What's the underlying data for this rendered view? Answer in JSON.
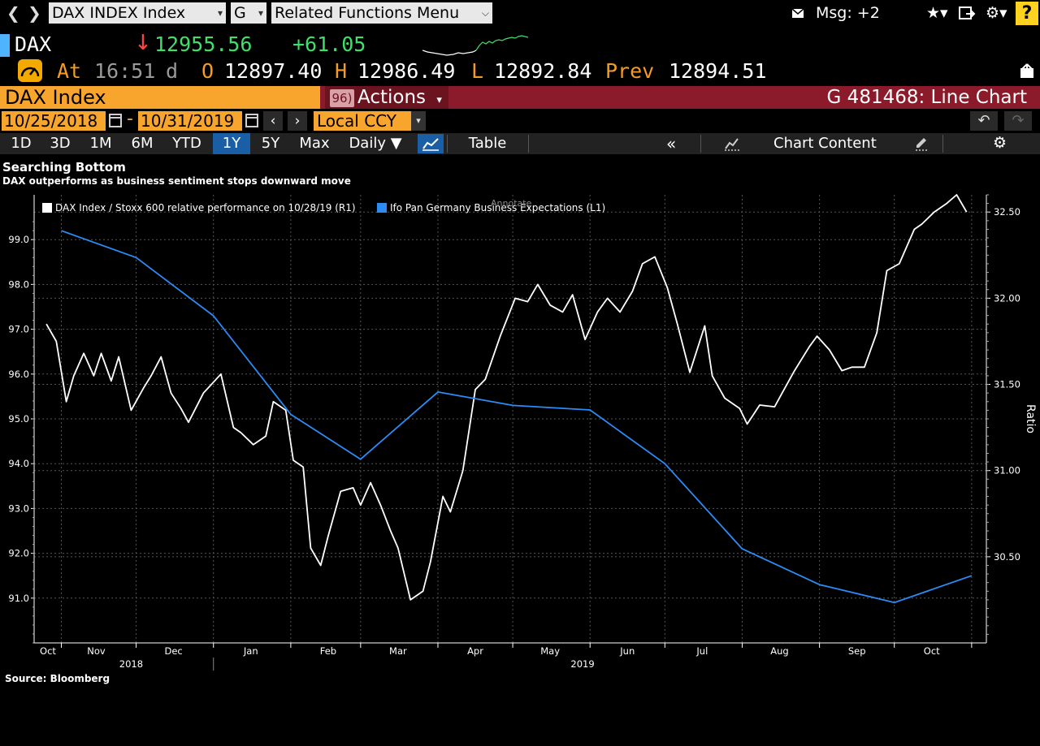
{
  "topbar": {
    "security_field": "DAX INDEX Index",
    "function_field": "G",
    "menu_field": "Related Functions  Menu",
    "msg_label": "Msg: +2",
    "help_label": "?"
  },
  "quote": {
    "ticker": "DAX",
    "last_price": "12955.56",
    "net_change": "+61.05",
    "time_prefix": "At",
    "time": "16:51",
    "time_suffix": "d",
    "open_label": "O",
    "open": "12897.40",
    "high_label": "H",
    "high": "12986.49",
    "low_label": "L",
    "low": "12892.84",
    "prev_label": "Prev",
    "prev": "12894.51"
  },
  "header": {
    "security_name": "DAX Index",
    "actions_num": "96)",
    "actions_label": "Actions",
    "chart_title": "G 481468: Line Chart"
  },
  "controls": {
    "start_date": "10/25/2018",
    "end_date": "10/31/2019",
    "date_separator": "-",
    "currency": "Local CCY",
    "periods": [
      "1D",
      "3D",
      "1M",
      "6M",
      "YTD",
      "1Y",
      "5Y",
      "Max"
    ],
    "active_period": "1Y",
    "frequency": "Daily",
    "table_label": "Table",
    "chart_content_label": "Chart Content"
  },
  "colors": {
    "accent_orange": "#f7a52d",
    "header_red": "#8b1b2a",
    "price_green": "#3ee06a",
    "active_blue": "#1a5fa6",
    "series_white": "#ffffff",
    "series_blue": "#2b8cf5"
  },
  "chart_data": {
    "type": "line",
    "title": "Searching Bottom",
    "subtitle": "DAX outperforms as business sentiment stops downward move",
    "source": "Source: Bloomberg",
    "right_axis_label": "Ratio",
    "annotate_label": "Annotate",
    "x_month_labels": [
      "Oct",
      "Nov",
      "Dec",
      "Jan",
      "Feb",
      "Mar",
      "Apr",
      "May",
      "Jun",
      "Jul",
      "Aug",
      "Sep",
      "Oct"
    ],
    "x_year_labels": [
      "2018",
      "2019"
    ],
    "y_left_ticks": [
      "99.0",
      "98.0",
      "97.0",
      "96.0",
      "95.0",
      "94.0",
      "93.0",
      "92.0",
      "91.0"
    ],
    "y_right_ticks": [
      "32.50",
      "32.00",
      "31.50",
      "31.00",
      "30.50"
    ],
    "y_left_range": [
      90.0,
      100.0
    ],
    "y_right_range": [
      30.0,
      32.6
    ],
    "grid": true,
    "legend_position": "top-left",
    "series": [
      {
        "name": "DAX Index / Stoxx 600 relative performance on 10/28/19 (R1)",
        "axis": "right",
        "x": [
          "2018-10-25",
          "2018-10-29",
          "2018-11-02",
          "2018-11-05",
          "2018-11-09",
          "2018-11-13",
          "2018-11-16",
          "2018-11-20",
          "2018-11-23",
          "2018-11-28",
          "2018-12-03",
          "2018-12-06",
          "2018-12-10",
          "2018-12-14",
          "2018-12-18",
          "2018-12-21",
          "2018-12-27",
          "2019-01-03",
          "2019-01-08",
          "2019-01-11",
          "2019-01-16",
          "2019-01-21",
          "2019-01-24",
          "2019-01-29",
          "2019-02-01",
          "2019-02-05",
          "2019-02-08",
          "2019-02-12",
          "2019-02-15",
          "2019-02-20",
          "2019-02-25",
          "2019-02-28",
          "2019-03-04",
          "2019-03-08",
          "2019-03-12",
          "2019-03-15",
          "2019-03-20",
          "2019-03-25",
          "2019-03-28",
          "2019-04-02",
          "2019-04-05",
          "2019-04-10",
          "2019-04-15",
          "2019-04-19",
          "2019-04-25",
          "2019-05-01",
          "2019-05-06",
          "2019-05-10",
          "2019-05-15",
          "2019-05-20",
          "2019-05-24",
          "2019-05-29",
          "2019-06-03",
          "2019-06-07",
          "2019-06-12",
          "2019-06-17",
          "2019-06-21",
          "2019-06-26",
          "2019-07-01",
          "2019-07-05",
          "2019-07-10",
          "2019-07-16",
          "2019-07-19",
          "2019-07-24",
          "2019-07-30",
          "2019-08-02",
          "2019-08-07",
          "2019-08-13",
          "2019-08-16",
          "2019-08-21",
          "2019-08-27",
          "2019-08-30",
          "2019-09-04",
          "2019-09-09",
          "2019-09-13",
          "2019-09-18",
          "2019-09-23",
          "2019-09-27",
          "2019-10-02",
          "2019-10-08",
          "2019-10-11",
          "2019-10-16",
          "2019-10-21",
          "2019-10-25",
          "2019-10-29"
        ],
        "values": [
          31.85,
          31.75,
          31.4,
          31.55,
          31.68,
          31.55,
          31.68,
          31.52,
          31.66,
          31.35,
          31.48,
          31.55,
          31.66,
          31.45,
          31.36,
          31.28,
          31.45,
          31.56,
          31.25,
          31.22,
          31.15,
          31.2,
          31.4,
          31.35,
          31.06,
          31.02,
          30.55,
          30.45,
          30.62,
          30.88,
          30.9,
          30.8,
          30.93,
          30.8,
          30.65,
          30.55,
          30.25,
          30.3,
          30.47,
          30.85,
          30.76,
          31.0,
          31.47,
          31.53,
          31.78,
          32.0,
          31.98,
          32.08,
          31.96,
          31.92,
          32.02,
          31.76,
          31.92,
          32.0,
          31.92,
          32.04,
          32.2,
          32.24,
          32.06,
          31.85,
          31.57,
          31.84,
          31.55,
          31.42,
          31.36,
          31.27,
          31.38,
          31.37,
          31.45,
          31.58,
          31.72,
          31.78,
          31.7,
          31.58,
          31.6,
          31.6,
          31.8,
          32.16,
          32.2,
          32.4,
          32.43,
          32.5,
          32.55,
          32.6,
          32.5
        ]
      },
      {
        "name": "Ifo Pan Germany Business Expectations  (L1)",
        "axis": "left",
        "x": [
          "2018-10-31",
          "2018-11-30",
          "2018-12-31",
          "2019-01-31",
          "2019-02-28",
          "2019-03-31",
          "2019-04-30",
          "2019-05-31",
          "2019-06-30",
          "2019-07-31",
          "2019-08-31",
          "2019-09-30",
          "2019-10-31"
        ],
        "values": [
          99.2,
          98.6,
          97.3,
          95.1,
          94.1,
          95.6,
          95.3,
          95.2,
          94.0,
          92.1,
          91.3,
          90.9,
          91.5
        ]
      }
    ]
  }
}
